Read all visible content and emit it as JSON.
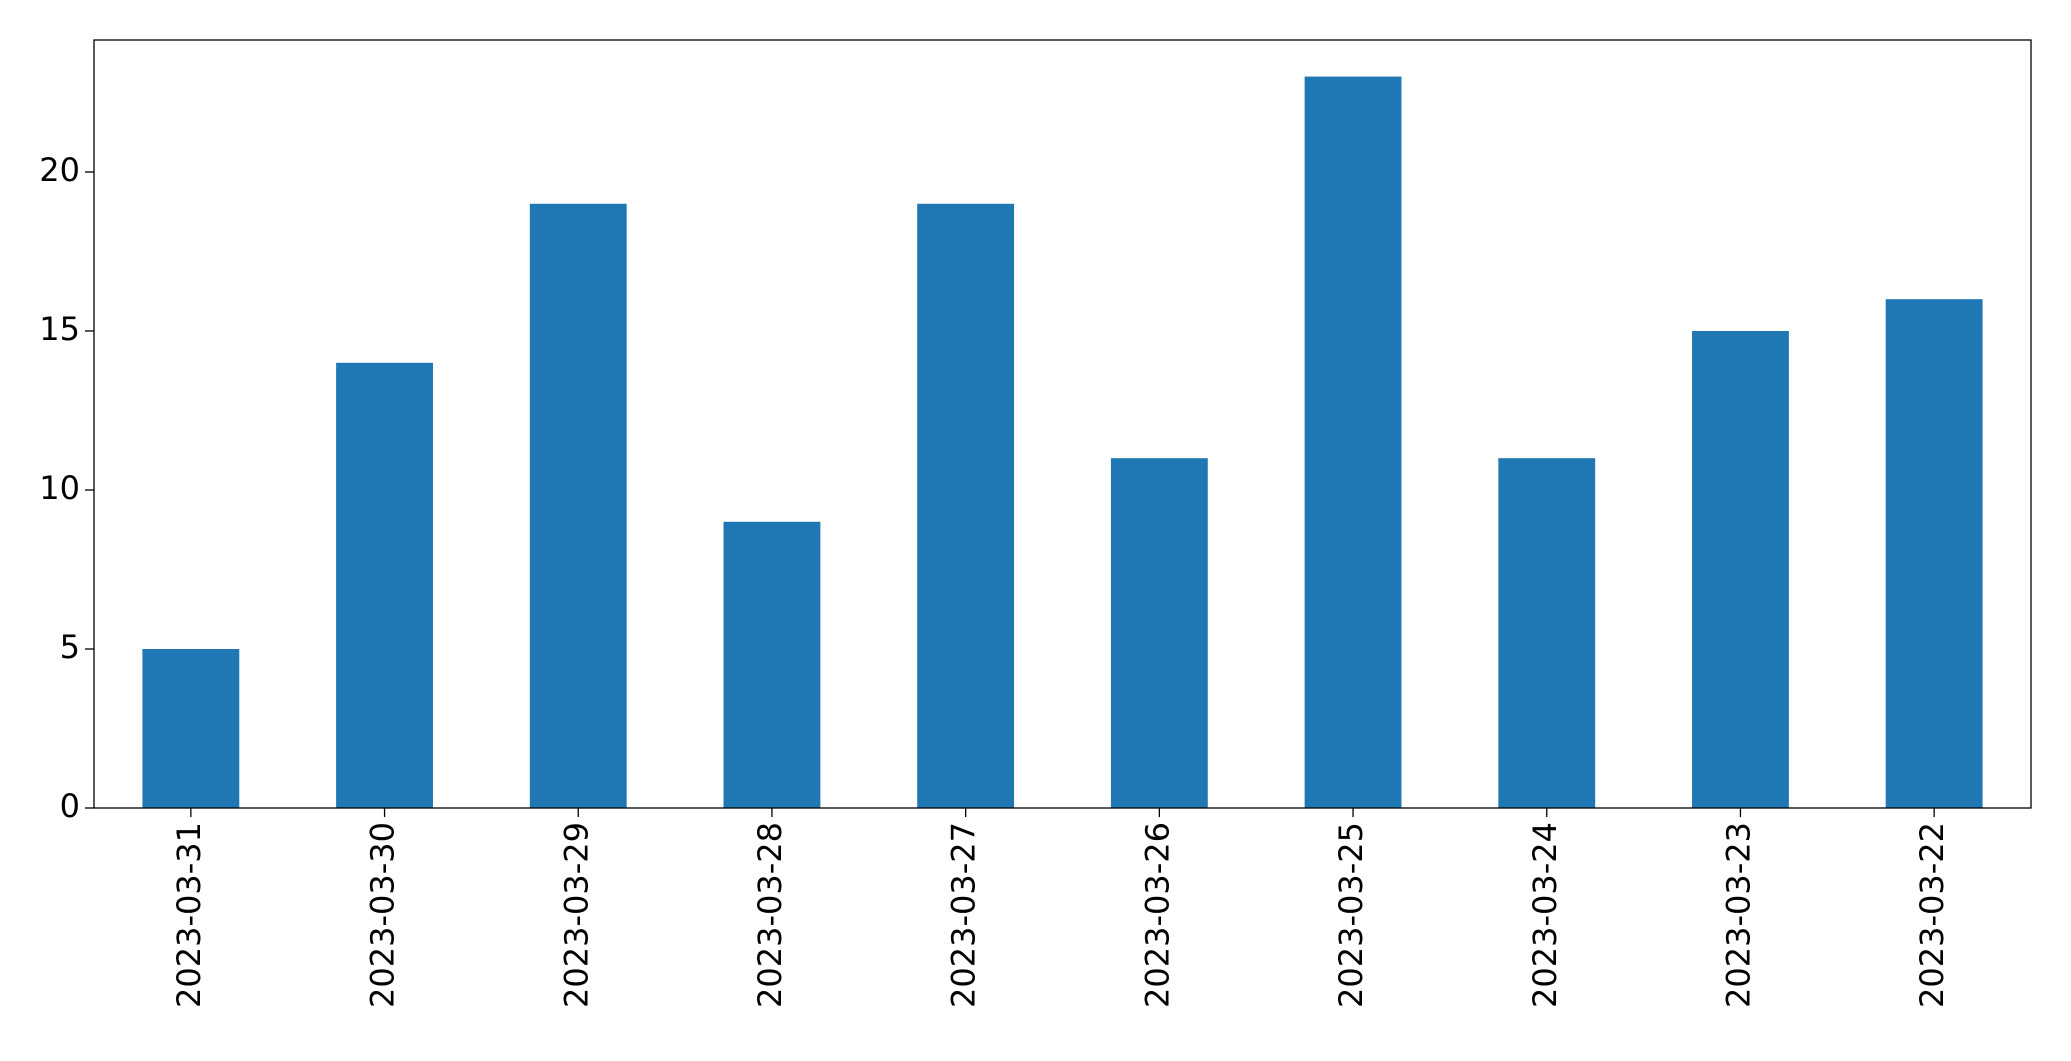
{
  "chart_data": {
    "type": "bar",
    "categories": [
      "2023-03-31",
      "2023-03-30",
      "2023-03-29",
      "2023-03-28",
      "2023-03-27",
      "2023-03-26",
      "2023-03-25",
      "2023-03-24",
      "2023-03-23",
      "2023-03-22"
    ],
    "values": [
      5,
      14,
      19,
      9,
      19,
      11,
      23,
      11,
      15,
      16
    ],
    "color": "#1f77b4",
    "ylim": [
      0,
      24.15
    ],
    "yticks": [
      0,
      5,
      10,
      15,
      20
    ],
    "grid": false
  }
}
